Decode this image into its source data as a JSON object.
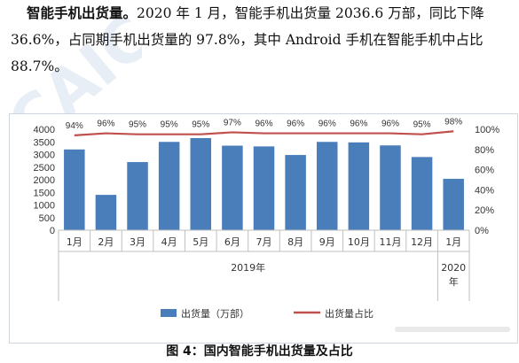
{
  "paragraph": {
    "lead_bold": "智能手机出货量。",
    "line1_rest": "2020 年 1 月，智能手机出货量 2036.6 万部，同比下降",
    "line2": "36.6%，占同期手机出货量的 97.8%，其中 Android 手机在智能手机中占比",
    "line3": "88.7%。"
  },
  "caption": "图 4：国内智能手机出货量及占比",
  "colors": {
    "bar": "#4a7ebb",
    "line": "#c0504d",
    "grid": "#d9d9d9",
    "axis_text": "#333333"
  },
  "chart_data": {
    "type": "bar",
    "categories": [
      "1月",
      "2月",
      "3月",
      "4月",
      "5月",
      "6月",
      "7月",
      "8月",
      "9月",
      "10月",
      "11月",
      "12月",
      "1月"
    ],
    "year_groups": [
      {
        "label": "2019年",
        "span": [
          0,
          11
        ]
      },
      {
        "label": "2020\n年",
        "span": [
          12,
          12
        ]
      }
    ],
    "series": [
      {
        "name": "出货量（万部）",
        "type": "bar",
        "axis": "left",
        "values": [
          3200,
          1400,
          2700,
          3500,
          3650,
          3350,
          3320,
          2980,
          3500,
          3480,
          3360,
          2900,
          2037
        ]
      },
      {
        "name": "出货量占比",
        "type": "line",
        "axis": "right",
        "values": [
          94,
          96,
          95,
          95,
          95,
          97,
          96,
          96,
          96,
          96,
          96,
          95,
          98
        ],
        "labels": [
          "94%",
          "96%",
          "95%",
          "95%",
          "95%",
          "97%",
          "96%",
          "96%",
          "96%",
          "96%",
          "96%",
          "95%",
          "98%"
        ]
      }
    ],
    "y_left": {
      "min": 0,
      "max": 4000,
      "ticks": [
        "0",
        "500",
        "1000",
        "1500",
        "2000",
        "2500",
        "3000",
        "3500",
        "4000"
      ]
    },
    "y_right": {
      "min": 0,
      "max": 100,
      "ticks": [
        "0%",
        "20%",
        "40%",
        "60%",
        "80%",
        "100%"
      ]
    },
    "legend_position": "bottom",
    "grid": false
  }
}
